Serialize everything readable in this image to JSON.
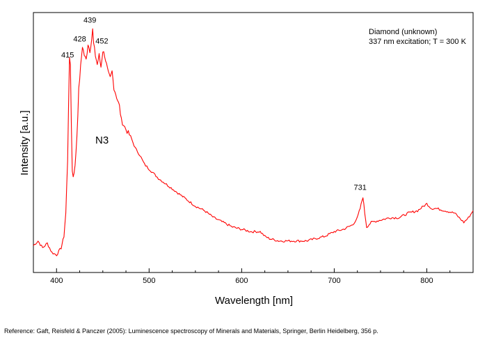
{
  "chart_data": {
    "type": "line",
    "title": "",
    "xlabel": "Wavelength [nm]",
    "ylabel": "Intensity [a.u.]",
    "xlim": [
      375,
      850
    ],
    "ylim": [
      0,
      100
    ],
    "xticks": [
      400,
      500,
      600,
      700,
      800
    ],
    "yticks_labeled": false,
    "grid": false,
    "legend": "none",
    "line_color": "#ff0000",
    "info_lines": [
      "Diamond (unknown)",
      "337 nm excitation; T = 300 K"
    ],
    "band_label": "N3",
    "peak_labels": [
      {
        "text": "415",
        "x": 415,
        "y": 86
      },
      {
        "text": "428",
        "x": 428,
        "y": 93
      },
      {
        "text": "439",
        "x": 439,
        "y": 101
      },
      {
        "text": "452",
        "x": 452,
        "y": 92
      },
      {
        "text": "731",
        "x": 731,
        "y": 29
      }
    ],
    "series": [
      {
        "x": [
          375,
          380,
          385,
          390,
          395,
          400,
          405,
          408,
          410,
          412,
          413,
          414,
          415,
          416,
          417,
          418,
          420,
          422,
          424,
          426,
          428,
          430,
          432,
          434,
          436,
          438,
          439,
          440,
          442,
          444,
          446,
          448,
          450,
          452,
          454,
          456,
          458,
          460,
          462,
          465,
          468,
          470,
          475,
          480,
          485,
          490,
          495,
          500,
          510,
          520,
          530,
          540,
          550,
          560,
          570,
          580,
          590,
          600,
          610,
          620,
          625,
          630,
          640,
          650,
          660,
          670,
          680,
          690,
          700,
          710,
          720,
          725,
          728,
          731,
          733,
          735,
          740,
          750,
          760,
          770,
          780,
          790,
          800,
          805,
          810,
          820,
          830,
          840,
          845,
          850
        ],
        "y": [
          8,
          10,
          7,
          9,
          5,
          4,
          7,
          12,
          22,
          45,
          70,
          88,
          86,
          60,
          40,
          38,
          42,
          55,
          75,
          85,
          94,
          90,
          88,
          95,
          92,
          97,
          101,
          95,
          90,
          86,
          90,
          85,
          92,
          90,
          86,
          82,
          80,
          83,
          76,
          72,
          68,
          62,
          58,
          55,
          50,
          47,
          43,
          41,
          37,
          34,
          31,
          28,
          25,
          23,
          20,
          18,
          16,
          15,
          14,
          14,
          12,
          11,
          10,
          10,
          10,
          10,
          11,
          12,
          14,
          15,
          17,
          20,
          24,
          29,
          22,
          16,
          18,
          19,
          20,
          20,
          22,
          23,
          26,
          24,
          24,
          23,
          22,
          18,
          20,
          23
        ]
      }
    ]
  },
  "reference": "Reference: Gaft, Reisfeld & Panczer (2005): Luminescence spectroscopy of Minerals and Materials, Springer, Berlin Heidelberg, 356 p."
}
